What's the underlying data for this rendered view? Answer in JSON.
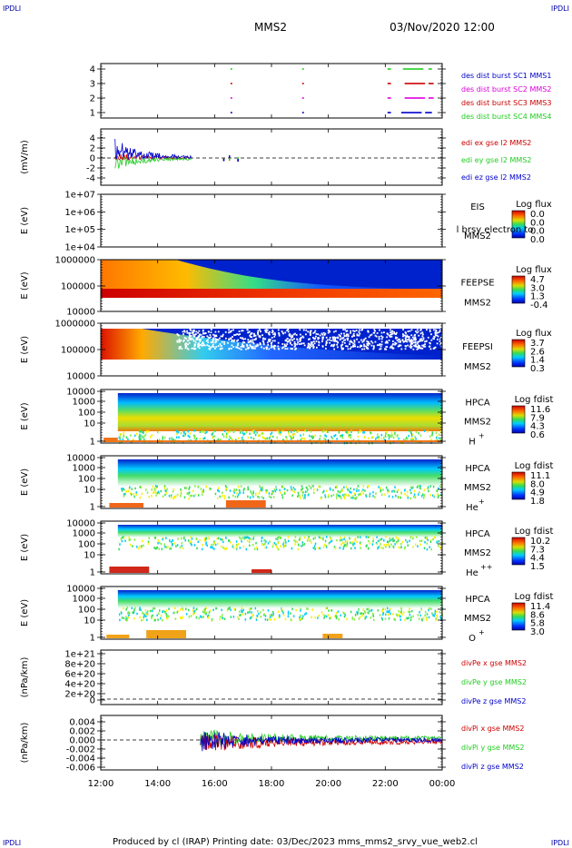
{
  "corners": {
    "tl": "IPDLI",
    "tr": "IPDLI",
    "bl": "IPDLI",
    "br": "IPDLI"
  },
  "header": {
    "mission": "MMS2",
    "datetime": "03/Nov/2020 12:00"
  },
  "footer": {
    "text": "Produced by cl (IRAP)   Printing date: 03/Dec/2023   mms_mms2_srvy_vue_web2.cl"
  },
  "colors": {
    "red": "#cc0000",
    "green": "#22cc22",
    "blue": "#0000cc",
    "magenta": "#dd00dd",
    "axis": "#000000"
  },
  "chart_data": {
    "type": "heatmap",
    "x_axis": {
      "ticks": [
        "12:00",
        "14:00",
        "16:00",
        "18:00",
        "20:00",
        "22:00",
        "00:00"
      ],
      "range_hours": [
        12,
        24
      ]
    },
    "panels": [
      {
        "id": "des-dist",
        "yticks": [
          "4",
          "3",
          "2",
          "1"
        ],
        "legend": [
          {
            "text": "des dist burst SC1 MMS1",
            "color": "#0000cc"
          },
          {
            "text": "des dist burst SC2 MMS2",
            "color": "#dd00dd"
          },
          {
            "text": "des dist burst SC3 MMS3",
            "color": "#cc0000"
          },
          {
            "text": "des dist burst SC4 MMS4",
            "color": "#22cc22"
          }
        ]
      },
      {
        "id": "edi",
        "ylabel": "(mV/m)",
        "yticks": [
          "4",
          "2",
          "0",
          "-2",
          "-4"
        ],
        "legend": [
          {
            "text": "edi ex gse l2 MMS2",
            "color": "#cc0000"
          },
          {
            "text": "edi ey gse l2 MMS2",
            "color": "#22cc22"
          },
          {
            "text": "edi ez gse l2 MMS2",
            "color": "#0000cc"
          }
        ]
      },
      {
        "id": "eis",
        "ylabel": "E (eV)",
        "yticks": [
          "1e+07",
          "1e+06",
          "1e+05",
          "1e+04"
        ],
        "instrument": "EIS",
        "spacecraft": "MMS2",
        "overlay": "l brsy electron to",
        "cbar_title": "Log flux",
        "cbar_ticks": [
          "0.0",
          "0.0",
          "0.0",
          "0.0"
        ]
      },
      {
        "id": "feepse",
        "ylabel": "E (eV)",
        "yticks": [
          "1000000",
          "100000",
          "10000"
        ],
        "instrument": "FEEPSE",
        "spacecraft": "MMS2",
        "cbar_title": "Log flux",
        "cbar_ticks": [
          "4.7",
          "3.0",
          "1.3",
          "-0.4"
        ]
      },
      {
        "id": "feepsi",
        "ylabel": "E (eV)",
        "yticks": [
          "1000000",
          "100000",
          "10000"
        ],
        "instrument": "FEEPSI",
        "spacecraft": "MMS2",
        "cbar_title": "Log flux",
        "cbar_ticks": [
          "3.7",
          "2.6",
          "1.4",
          "0.3"
        ]
      },
      {
        "id": "hpca-h",
        "ylabel": "E (eV)",
        "yticks": [
          "10000",
          "1000",
          "100",
          "10",
          "1"
        ],
        "instrument": "HPCA",
        "spacecraft": "MMS2",
        "species": "H",
        "charge": "+",
        "cbar_title": "Log fdist",
        "cbar_ticks": [
          "11.6",
          "7.9",
          "4.3",
          "0.6"
        ]
      },
      {
        "id": "hpca-he",
        "ylabel": "E (eV)",
        "yticks": [
          "10000",
          "1000",
          "100",
          "10",
          "1"
        ],
        "instrument": "HPCA",
        "spacecraft": "MMS2",
        "species": "He",
        "charge": "+",
        "cbar_title": "Log fdist",
        "cbar_ticks": [
          "11.1",
          "8.0",
          "4.9",
          "1.8"
        ]
      },
      {
        "id": "hpca-hepp",
        "ylabel": "E (eV)",
        "yticks": [
          "10000",
          "1000",
          "100",
          "10",
          "1"
        ],
        "instrument": "HPCA",
        "spacecraft": "MMS2",
        "species": "He",
        "charge": "++",
        "cbar_title": "Log fdist",
        "cbar_ticks": [
          "10.2",
          "7.3",
          "4.4",
          "1.5"
        ]
      },
      {
        "id": "hpca-o",
        "ylabel": "E (eV)",
        "yticks": [
          "10000",
          "1000",
          "100",
          "10",
          "1"
        ],
        "instrument": "HPCA",
        "spacecraft": "MMS2",
        "species": "O",
        "charge": "+",
        "cbar_title": "Log fdist",
        "cbar_ticks": [
          "11.4",
          "8.6",
          "5.8",
          "3.0"
        ]
      },
      {
        "id": "divpe",
        "ylabel": "(nPa/km)",
        "yticks": [
          "1e+21",
          "8e+20",
          "6e+20",
          "4e+20",
          "2e+20",
          "0"
        ],
        "legend": [
          {
            "text": "divPe x gse MMS2",
            "color": "#cc0000"
          },
          {
            "text": "divPe y gse MMS2",
            "color": "#22cc22"
          },
          {
            "text": "divPe z gse MMS2",
            "color": "#0000cc"
          }
        ]
      },
      {
        "id": "divpi",
        "ylabel": "(nPa/km)",
        "yticks": [
          "0.004",
          "0.002",
          "0.000",
          "-0.002",
          "-0.004",
          "-0.006"
        ],
        "legend": [
          {
            "text": "divPi x gse MMS2",
            "color": "#cc0000"
          },
          {
            "text": "divPi y gse MMS2",
            "color": "#22cc22"
          },
          {
            "text": "divPi z gse MMS2",
            "color": "#0000cc"
          }
        ]
      }
    ]
  }
}
